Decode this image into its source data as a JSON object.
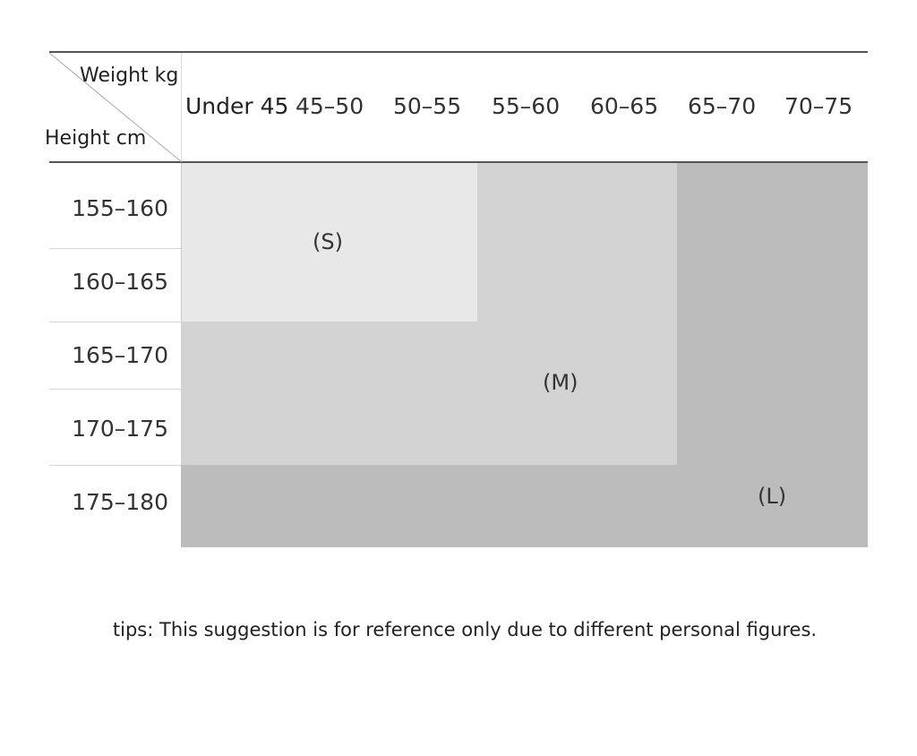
{
  "header": {
    "weight_label": "Weight kg",
    "height_label": "Height cm",
    "columns": [
      "Under 45",
      "45–50",
      "50–55",
      "55–60",
      "60–65",
      "65–70",
      "70–75"
    ]
  },
  "rows": [
    "155–160",
    "160–165",
    "165–170",
    "170–175",
    "175–180"
  ],
  "sizes": {
    "s": {
      "label": "(S)",
      "color": "#e8e8e8"
    },
    "m": {
      "label": "(M)",
      "color": "#d3d3d3"
    },
    "l": {
      "label": "(L)",
      "color": "#bcbcbc"
    }
  },
  "tips": "tips: This suggestion is for reference only due to different personal figures."
}
